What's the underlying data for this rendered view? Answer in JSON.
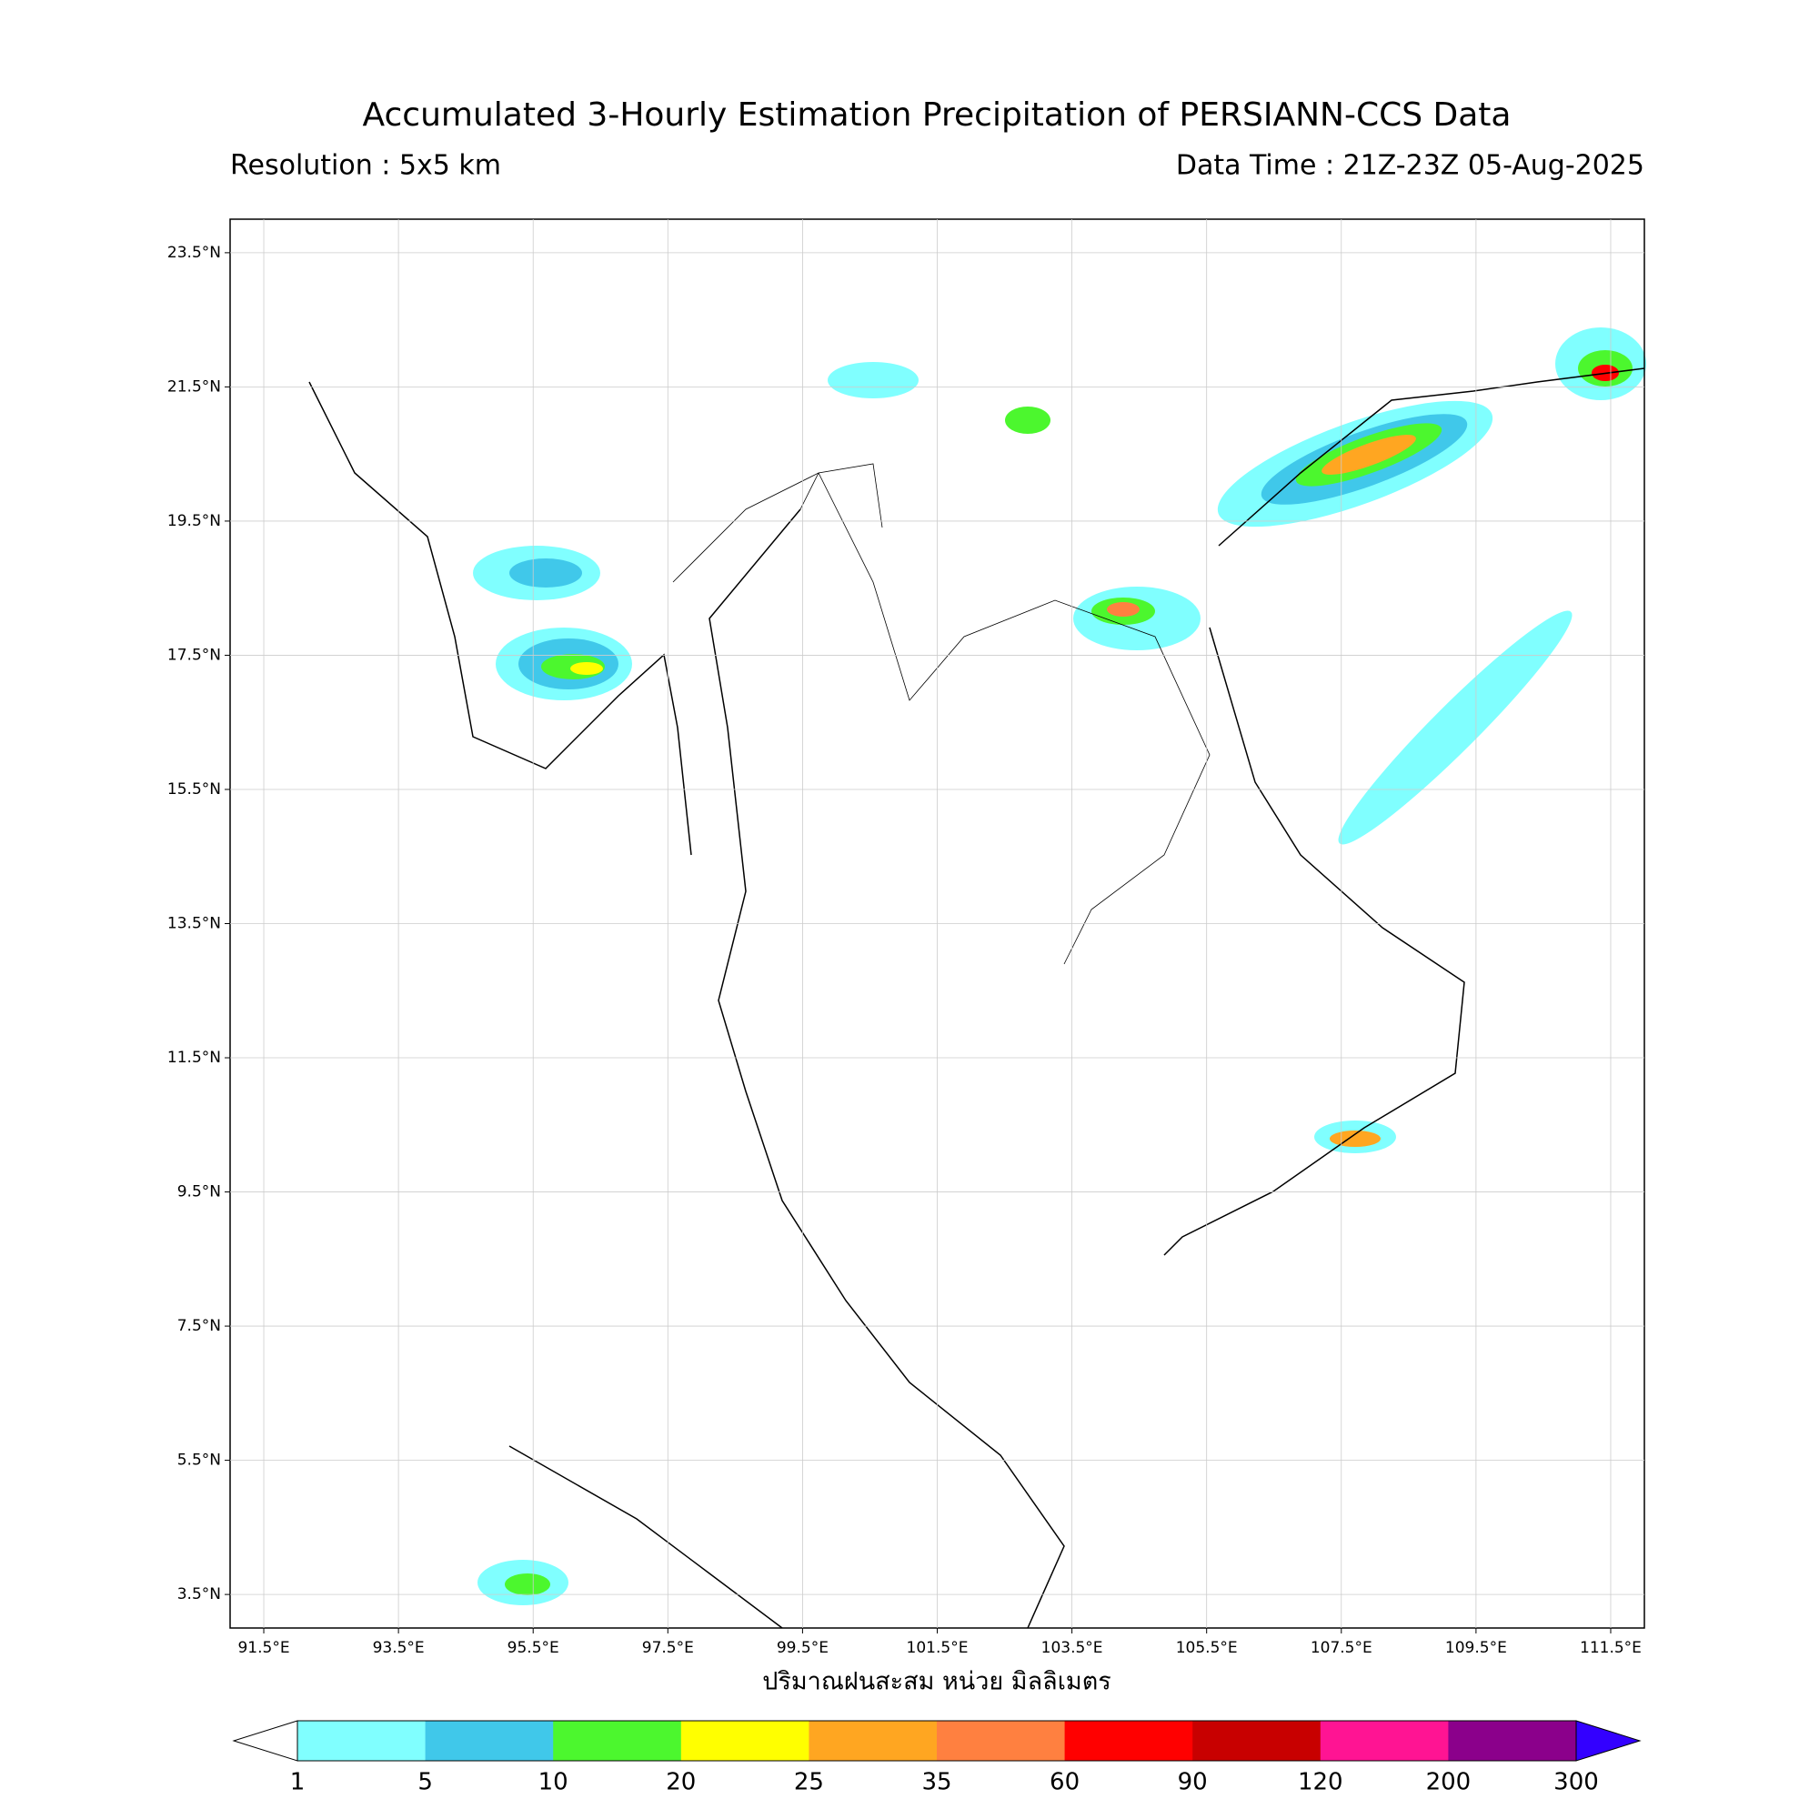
{
  "title": "Accumulated 3-Hourly Estimation Precipitation of PERSIANN-CCS Data",
  "subtitle_left": "Resolution : 5x5 km",
  "subtitle_right": "Data Time : 21Z-23Z 05-Aug-2025",
  "xlim": [
    91,
    112
  ],
  "ylim": [
    3,
    24
  ],
  "xticks": [
    {
      "value": 91.5,
      "label": "91.5°E"
    },
    {
      "value": 93.5,
      "label": "93.5°E"
    },
    {
      "value": 95.5,
      "label": "95.5°E"
    },
    {
      "value": 97.5,
      "label": "97.5°E"
    },
    {
      "value": 99.5,
      "label": "99.5°E"
    },
    {
      "value": 101.5,
      "label": "101.5°E"
    },
    {
      "value": 103.5,
      "label": "103.5°E"
    },
    {
      "value": 105.5,
      "label": "105.5°E"
    },
    {
      "value": 107.5,
      "label": "107.5°E"
    },
    {
      "value": 109.5,
      "label": "109.5°E"
    },
    {
      "value": 111.5,
      "label": "111.5°E"
    }
  ],
  "yticks": [
    {
      "value": 23.5,
      "label": "23.5°N"
    },
    {
      "value": 21.5,
      "label": "21.5°N"
    },
    {
      "value": 19.5,
      "label": "19.5°N"
    },
    {
      "value": 17.5,
      "label": "17.5°N"
    },
    {
      "value": 15.5,
      "label": "15.5°N"
    },
    {
      "value": 13.5,
      "label": "13.5°N"
    },
    {
      "value": 11.5,
      "label": "11.5°N"
    },
    {
      "value": 9.5,
      "label": "9.5°N"
    },
    {
      "value": 7.5,
      "label": "7.5°N"
    },
    {
      "value": 5.5,
      "label": "5.5°N"
    },
    {
      "value": 3.5,
      "label": "3.5°N"
    }
  ],
  "grid": true,
  "colorbar": {
    "label": "ปริมาณฝนสะสม หน่วย มิลลิเมตร",
    "levels": [
      1,
      5,
      10,
      20,
      25,
      35,
      60,
      90,
      120,
      200,
      300
    ],
    "colors": [
      "#80ffff",
      "#40c8ea",
      "#4cf72e",
      "#ffff00",
      "#ffa621",
      "#ff8040",
      "#ff0000",
      "#c80000",
      "#ff1493",
      "#8b008b"
    ],
    "under": "#ffffff",
    "over": "#3300ff"
  }
}
